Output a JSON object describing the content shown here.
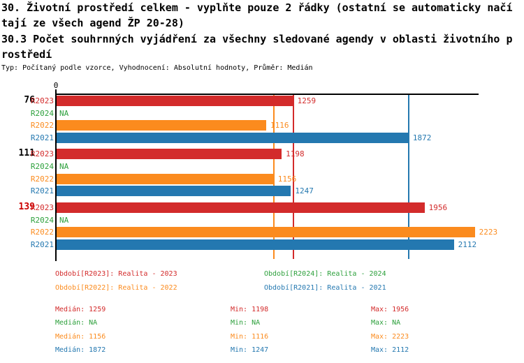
{
  "header": {
    "title_lines": [
      "30. Životní prostředí celkem - vyplňte pouze 2 řádky (ostatní se automaticky načí",
      "tají ze všech agend ŽP 20-28)",
      "30.3 Počet souhrnných vyjádření za všechny sledované agendy v oblasti životního p",
      "rostředí"
    ],
    "meta_line": "Typ: Počítaný podle vzorce, Vyhodnocení: Absolutní hodnoty, Průměr: Medián"
  },
  "chart_data": {
    "type": "bar",
    "orientation": "horizontal",
    "grid": false,
    "origin_tick_label": "0",
    "x_axis_range": [
      0,
      2243
    ],
    "colors": {
      "axis": "#000000",
      "group_label_default": "#000000",
      "group_label_highlight": "#cc0000"
    },
    "series": [
      {
        "id": "R2023",
        "color": "#d32b2b",
        "legend": "Období[R2023]: Realita - 2023",
        "median": "1259",
        "min": "1198",
        "max": "1956"
      },
      {
        "id": "R2024",
        "color": "#2da03c",
        "legend": "Období[R2024]: Realita - 2024",
        "median": "NA",
        "min": "NA",
        "max": "NA"
      },
      {
        "id": "R2022",
        "color": "#fb8b1e",
        "legend": "Období[R2022]: Realita - 2022",
        "median": "1156",
        "min": "1116",
        "max": "2223"
      },
      {
        "id": "R2021",
        "color": "#2478b0",
        "legend": "Období[R2021]: Realita - 2021",
        "median": "1872",
        "min": "1247",
        "max": "2112"
      }
    ],
    "stat_labels": {
      "median": "Medián",
      "min": "Min",
      "max": "Max"
    },
    "median_lines": [
      {
        "series": "R2023",
        "value": 1259
      },
      {
        "series": "R2022",
        "value": 1156
      },
      {
        "series": "R2021",
        "value": 1872
      }
    ],
    "groups": [
      {
        "label": "76",
        "label_color": "#000000",
        "bars": [
          {
            "series": "R2023",
            "value": 1259,
            "display": "1259"
          },
          {
            "series": "R2024",
            "value": null,
            "display": "NA"
          },
          {
            "series": "R2022",
            "value": 1116,
            "display": "1116"
          },
          {
            "series": "R2021",
            "value": 1872,
            "display": "1872"
          }
        ]
      },
      {
        "label": "111",
        "label_color": "#000000",
        "bars": [
          {
            "series": "R2023",
            "value": 1198,
            "display": "1198"
          },
          {
            "series": "R2024",
            "value": null,
            "display": "NA"
          },
          {
            "series": "R2022",
            "value": 1156,
            "display": "1156"
          },
          {
            "series": "R2021",
            "value": 1247,
            "display": "1247"
          }
        ]
      },
      {
        "label": "139",
        "label_color": "#cc0000",
        "bars": [
          {
            "series": "R2023",
            "value": 1956,
            "display": "1956"
          },
          {
            "series": "R2024",
            "value": null,
            "display": "NA"
          },
          {
            "series": "R2022",
            "value": 2223,
            "display": "2223"
          },
          {
            "series": "R2021",
            "value": 2112,
            "display": "2112"
          }
        ]
      }
    ]
  }
}
